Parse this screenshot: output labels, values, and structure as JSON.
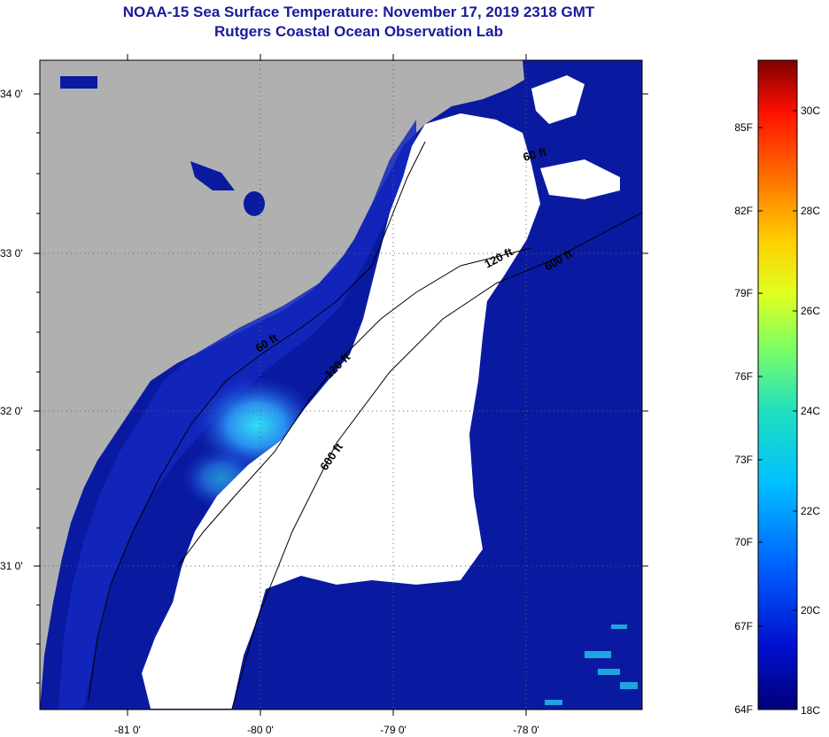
{
  "title": "NOAA-15 Sea Surface Temperature:  November 17, 2019 2318 GMT",
  "subtitle": "Rutgers Coastal Ocean Observation Lab",
  "map": {
    "lat_labels": [
      "34 0'",
      "33 0'",
      "32 0'",
      "31 0'"
    ],
    "lon_labels": [
      "-81 0'",
      "-80 0'",
      "-79 0'",
      "-78 0'"
    ],
    "contours": [
      "60 ft",
      "120 ft",
      "600 ft",
      "60 ft",
      "120 ft",
      "600 ft"
    ],
    "colors": {
      "land": "#b0b0b0",
      "ocean": "#0a1aa0",
      "cloud": "#ffffff",
      "warm_patch": "#22c8f0"
    }
  },
  "colorbar": {
    "fahrenheit": [
      "85F",
      "82F",
      "79F",
      "76F",
      "73F",
      "70F",
      "67F",
      "64F"
    ],
    "celsius": [
      "30C",
      "28C",
      "26C",
      "24C",
      "22C",
      "20C",
      "18C"
    ],
    "range_c": [
      18,
      31
    ]
  }
}
